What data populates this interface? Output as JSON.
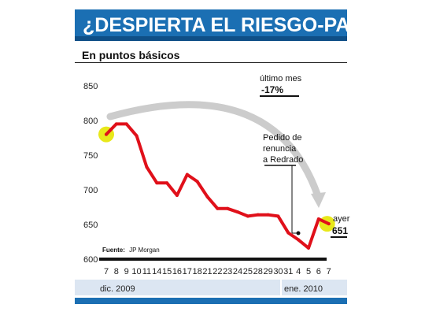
{
  "title": "¿DESPIERTA EL RIESGO-PAÍS?",
  "subtitle": "En puntos básicos",
  "source_label": "Fuente:",
  "source_value": "JP Morgan",
  "colors": {
    "title_bar": "#1b6fb3",
    "line": "#e0101a",
    "highlight": "#e8e81a",
    "arrow": "#cccccc",
    "band": "#dce6f2"
  },
  "annotations": {
    "last_month_label": "último mes",
    "last_month_value": "-17%",
    "event_label": [
      "Pedido de",
      "renuncia",
      "a Redrado"
    ],
    "today_label": "ayer",
    "today_value": "651"
  },
  "period_labels": [
    "dic. 2009",
    "ene. 2010"
  ],
  "chart_data": {
    "type": "line",
    "title": "¿DESPIERTA EL RIESGO-PAÍS?",
    "ylabel": "En puntos básicos",
    "ylim": [
      600,
      850
    ],
    "yticks": [
      600,
      650,
      700,
      750,
      800,
      850
    ],
    "categories": [
      "7",
      "8",
      "9",
      "10",
      "11",
      "14",
      "15",
      "16",
      "17",
      "18",
      "21",
      "22",
      "23",
      "24",
      "25",
      "28",
      "29",
      "30",
      "31",
      "4",
      "5",
      "6",
      "7"
    ],
    "values": [
      780,
      795,
      795,
      778,
      733,
      710,
      710,
      692,
      722,
      712,
      690,
      673,
      673,
      668,
      662,
      664,
      664,
      662,
      638,
      628,
      616,
      658,
      651
    ],
    "grid": false
  }
}
